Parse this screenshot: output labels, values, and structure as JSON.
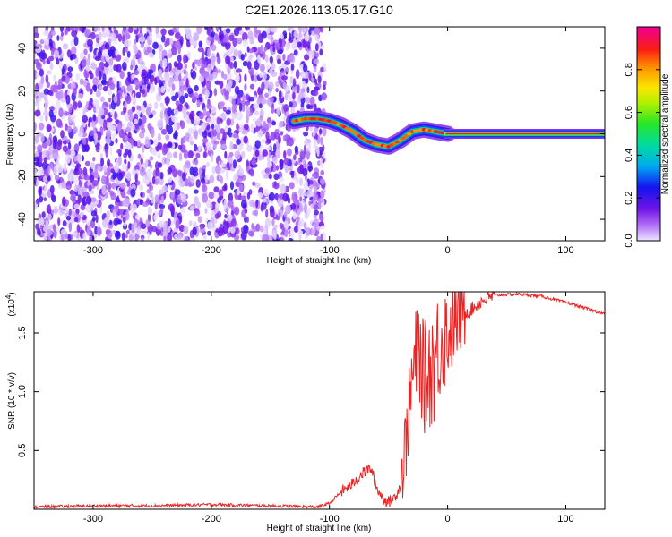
{
  "title": "C2E1.2026.113.05.17.G10",
  "chart_data": [
    {
      "type": "heatmap",
      "xlabel": "Height of straight line (km)",
      "ylabel": "Frequency (Hz)",
      "xlim": [
        -350,
        133
      ],
      "ylim": [
        -50,
        50
      ],
      "x_ticks": [
        -300,
        -200,
        -100,
        0,
        100
      ],
      "y_ticks": [
        -40,
        -20,
        0,
        20,
        40
      ],
      "noise_region_x": [
        -350,
        -110
      ],
      "line_frequency": 0,
      "trace": {
        "x": [
          -130,
          -120,
          -110,
          -100,
          -90,
          -80,
          -70,
          -60,
          -50,
          -40,
          -30,
          -20,
          -10,
          0
        ],
        "y": [
          6,
          7,
          7,
          6,
          4,
          1,
          -3,
          -5,
          -6,
          -3,
          1,
          2,
          1,
          0
        ]
      },
      "colorbar": {
        "label": "Normalized spectral amplitude",
        "ticks": [
          0.0,
          0.2,
          0.4,
          0.6,
          0.8
        ],
        "range": [
          0,
          1
        ]
      }
    },
    {
      "type": "line",
      "xlabel": "Height of straight line (km)",
      "ylabel": "SNR (10 * v/v)",
      "multiplier": "(x10",
      "multiplier_exp": "4",
      "xlim": [
        -350,
        133
      ],
      "ylim": [
        0,
        1.85
      ],
      "x_ticks": [
        -300,
        -200,
        -100,
        0,
        100
      ],
      "y_ticks": [
        0.5,
        1.0,
        1.5
      ],
      "y_tick_labels": [
        "0.5",
        "1.0",
        "1.5"
      ],
      "series": [
        {
          "color": "#ee2222",
          "x": [
            -350,
            -300,
            -250,
            -200,
            -150,
            -110,
            -100,
            -90,
            -80,
            -75,
            -70,
            -65,
            -60,
            -55,
            -50,
            -45,
            -40,
            -35,
            -30,
            -25,
            -20,
            -15,
            -10,
            -5,
            0,
            5,
            10,
            20,
            30,
            40,
            60,
            80,
            100,
            120,
            133
          ],
          "y": [
            0.02,
            0.03,
            0.03,
            0.04,
            0.03,
            0.02,
            0.05,
            0.15,
            0.22,
            0.28,
            0.32,
            0.35,
            0.18,
            0.1,
            0.06,
            0.1,
            0.2,
            0.6,
            1.1,
            1.4,
            1.1,
            1.2,
            1.3,
            1.45,
            1.5,
            1.6,
            1.65,
            1.7,
            1.78,
            1.82,
            1.83,
            1.81,
            1.76,
            1.7,
            1.66
          ]
        }
      ]
    }
  ]
}
